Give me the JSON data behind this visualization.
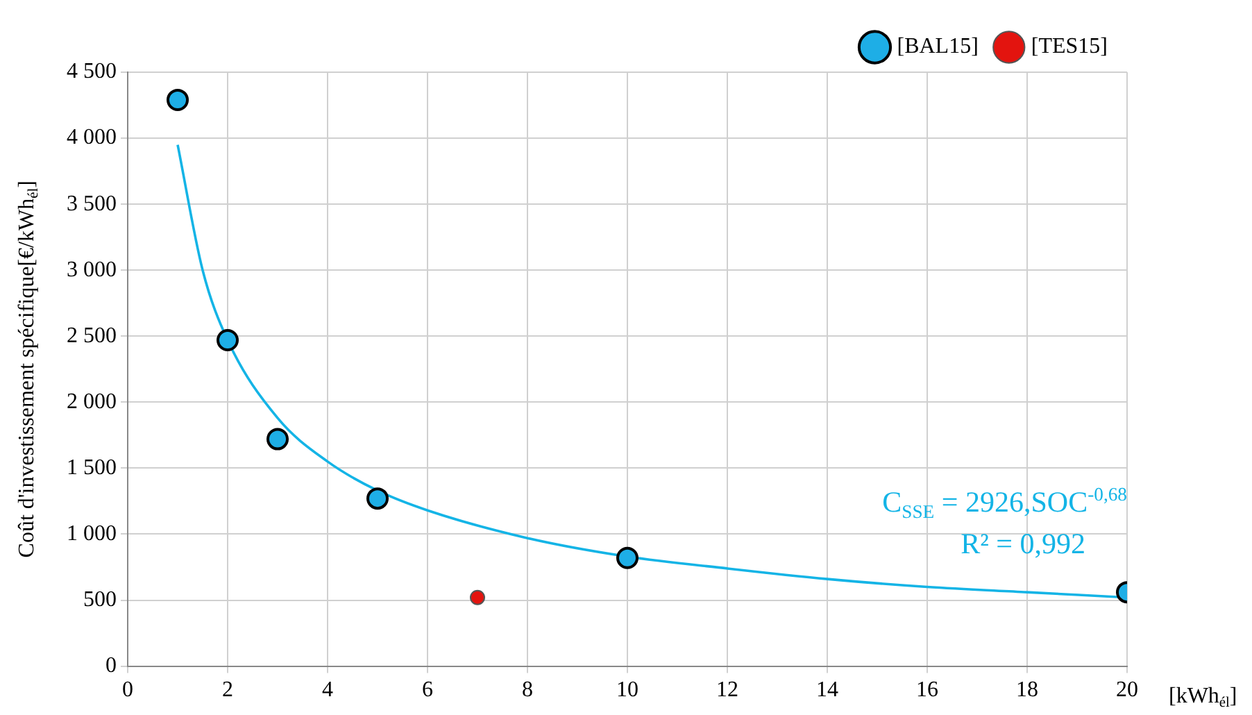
{
  "chart_data": {
    "type": "scatter",
    "xlabel": "[kWh$_{él}$]",
    "ylabel": "Coût d'investissement spécifique[€/kWh$_{él}$]",
    "xlim": [
      0,
      20
    ],
    "xticks": [
      0,
      2,
      4,
      6,
      8,
      10,
      12,
      14,
      16,
      18,
      20
    ],
    "ylim": [
      0,
      4500
    ],
    "yticks": [
      0,
      500,
      {
        "value": 1000,
        "label": "1 000"
      },
      {
        "value": 1500,
        "label": "1 500"
      },
      {
        "value": 2000,
        "label": "2 000"
      },
      {
        "value": 2500,
        "label": "2 500"
      },
      {
        "value": 3000,
        "label": "3 000"
      },
      {
        "value": 3500,
        "label": "3 500"
      },
      {
        "value": 4000,
        "label": "4 000"
      },
      {
        "value": 4500,
        "label": "4 500"
      }
    ],
    "grid": true,
    "legend": "top right",
    "marker": "circle",
    "series": [
      {
        "name": "[BAL15]",
        "color": "#1eaee6",
        "x": [
          1,
          2,
          3,
          5,
          10,
          20
        ],
        "values": [
          4290,
          2470,
          1720,
          1270,
          820,
          560
        ]
      },
      {
        "name": "[TES15]",
        "color": "#e3140f",
        "x": [
          7
        ],
        "values": [
          520
        ]
      },
      {
        "type": "line",
        "marker": "none",
        "color": "#14b4e6",
        "x": [
          1,
          1.5,
          2,
          3,
          4,
          5,
          6,
          8,
          10,
          12,
          14,
          16,
          18,
          20
        ],
        "values": [
          3950,
          3000,
          2470,
          1880,
          1550,
          1330,
          1180,
          970,
          830,
          740,
          660,
          600,
          560,
          520
        ]
      }
    ],
    "annotations": [
      "C$_{SSE}$ = 2926,SOC$^{-0,68}$",
      "R² = 0,992"
    ]
  }
}
